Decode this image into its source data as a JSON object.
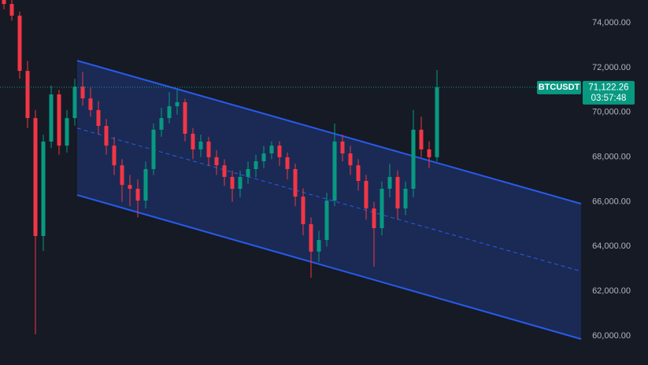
{
  "chart_data": {
    "type": "candlestick",
    "symbol": "BTCUSDT",
    "open": [
      75200,
      74840,
      74320,
      71850,
      69740,
      64470,
      68690,
      70800,
      68510,
      69740,
      71150,
      70620,
      70100,
      69390,
      68510,
      67630,
      66750,
      66580,
      66050,
      67460,
      69220,
      69740,
      70270,
      70450,
      69040,
      68340,
      68690,
      67990,
      67630,
      67110,
      66580,
      67110,
      67460,
      67810,
      68160,
      68510,
      67990,
      67460,
      66230,
      65000,
      63770,
      64290,
      66050,
      68690,
      68160,
      67630,
      66930,
      65700,
      64820,
      66580,
      67110,
      65700,
      66580,
      69220,
      68340,
      67990
    ],
    "high": [
      75400,
      75100,
      74500,
      72300,
      70100,
      69000,
      71200,
      71000,
      70100,
      71500,
      71800,
      71100,
      70500,
      69700,
      68900,
      67900,
      67200,
      67000,
      67800,
      69500,
      70200,
      70900,
      71000,
      70600,
      69300,
      69000,
      68900,
      68300,
      67900,
      67400,
      67400,
      67800,
      68100,
      68500,
      68700,
      68700,
      68200,
      67700,
      66600,
      65300,
      64700,
      66400,
      69500,
      69000,
      68500,
      67900,
      67200,
      66000,
      66900,
      67700,
      67400,
      66900,
      70100,
      69800,
      68700,
      71890
    ],
    "low": [
      74600,
      74100,
      71500,
      69300,
      60070,
      63800,
      68400,
      68100,
      68200,
      69400,
      70300,
      69800,
      69000,
      68100,
      67200,
      66000,
      65800,
      65300,
      65700,
      67200,
      68900,
      69500,
      69900,
      68700,
      67900,
      68000,
      67600,
      67200,
      66700,
      66000,
      66200,
      66800,
      67100,
      67500,
      67900,
      67600,
      67000,
      65800,
      64500,
      62600,
      63300,
      64000,
      65800,
      67800,
      67200,
      66500,
      65200,
      63100,
      64500,
      66200,
      65200,
      65400,
      66200,
      68000,
      67500,
      67800
    ],
    "close": [
      74840,
      74320,
      71850,
      69740,
      64470,
      68690,
      70800,
      68510,
      69740,
      71150,
      70620,
      70100,
      69390,
      68510,
      67630,
      66750,
      66580,
      66050,
      67460,
      69220,
      69740,
      70270,
      70450,
      69040,
      68340,
      68690,
      67990,
      67630,
      67110,
      66580,
      67110,
      67460,
      67810,
      68160,
      68510,
      67990,
      67460,
      66230,
      65000,
      63770,
      64290,
      66050,
      68690,
      68160,
      67630,
      66930,
      65700,
      64820,
      66580,
      67110,
      65700,
      66580,
      69220,
      68340,
      67990,
      71122.26
    ],
    "up_color": "#089981",
    "down_color": "#f23645",
    "ylim": [
      58700,
      75020
    ],
    "yticks": [
      {
        "value": 60000,
        "label": "60,000.00"
      },
      {
        "value": 62000,
        "label": "62,000.00"
      },
      {
        "value": 64000,
        "label": "64,000.00"
      },
      {
        "value": 66000,
        "label": "66,000.00"
      },
      {
        "value": 68000,
        "label": "68,000.00"
      },
      {
        "value": 70000,
        "label": "70,000.00"
      },
      {
        "value": 72000,
        "label": "72,000.00"
      },
      {
        "value": 74000,
        "label": "74,000.00"
      }
    ],
    "grid": false,
    "last_price": {
      "value": 71122.26,
      "label": "71,122.26"
    },
    "countdown": "03:57:48",
    "channel": {
      "color": "#2962ff",
      "upper": [
        72310,
        65910
      ],
      "middle": [
        69290,
        62890
      ],
      "lower": [
        66300,
        59860
      ]
    }
  }
}
